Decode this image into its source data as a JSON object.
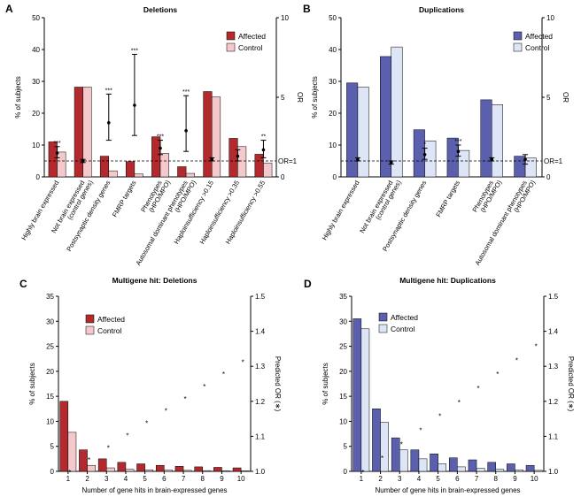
{
  "chart_data": [
    {
      "panel": "A",
      "type": "bar",
      "title": "Deletions",
      "ylabel": "% of subjects",
      "y2label": "OR",
      "ylim": [
        0,
        50
      ],
      "yticks": [
        0,
        10,
        20,
        30,
        40,
        50
      ],
      "y2lim": [
        0,
        10
      ],
      "y2ticks": [
        0,
        5,
        10
      ],
      "reference_line_label": "OR=1",
      "reference_or": 1,
      "categories": [
        "Highly brain expressed",
        "Not brain expressed (control genes)",
        "Postsynaptic density genes",
        "FMRP targets",
        "Phenotypes (HPO/MPO)",
        "Autosomal dominant phenotypes (HPO/MPO)",
        "Haploinsufficiency >0.15",
        "Haploinsufficiency >0.35",
        "Haploinsufficiency >0.55"
      ],
      "series": [
        {
          "name": "Affected",
          "color": "#b22a2e",
          "values": [
            11,
            28.2,
            6.5,
            4.8,
            12.6,
            3.2,
            26.8,
            12.1,
            7.1
          ]
        },
        {
          "name": "Control",
          "color": "#f4c9cc",
          "values": [
            7.8,
            28.2,
            1.9,
            0.9,
            7.4,
            1.1,
            25.1,
            9.5,
            4.3
          ]
        }
      ],
      "odds_ratio": [
        {
          "value": 1.5,
          "lower": 1.2,
          "upper": 1.9,
          "sig": "***"
        },
        {
          "value": 1.0,
          "lower": 0.9,
          "upper": 1.1,
          "sig": ""
        },
        {
          "value": 3.4,
          "lower": 2.3,
          "upper": 5.2,
          "sig": "***"
        },
        {
          "value": 4.5,
          "lower": 2.6,
          "upper": 7.7,
          "sig": "***"
        },
        {
          "value": 1.8,
          "lower": 1.4,
          "upper": 2.3,
          "sig": "***"
        },
        {
          "value": 2.9,
          "lower": 1.6,
          "upper": 5.1,
          "sig": "***"
        },
        {
          "value": 1.1,
          "lower": 1.0,
          "upper": 1.2,
          "sig": ""
        },
        {
          "value": 1.3,
          "lower": 1.0,
          "upper": 1.7,
          "sig": ""
        },
        {
          "value": 1.7,
          "lower": 1.2,
          "upper": 2.3,
          "sig": "**"
        }
      ],
      "legend": [
        "Affected",
        "Control"
      ]
    },
    {
      "panel": "B",
      "type": "bar",
      "title": "Duplications",
      "ylabel": "% of subjects",
      "y2label": "OR",
      "ylim": [
        0,
        50
      ],
      "yticks": [
        0,
        10,
        20,
        30,
        40,
        50
      ],
      "y2lim": [
        0,
        10
      ],
      "y2ticks": [
        0,
        5,
        10
      ],
      "reference_line_label": "OR=1",
      "reference_or": 1,
      "categories": [
        "Highly brain expressed",
        "Not brain expressed (control genes)",
        "Postsynaptic density genes",
        "FMRP targets",
        "Phenotypes (HPO/MPO)",
        "Autosomal dominant phenotypes (HPO/MPO)"
      ],
      "series": [
        {
          "name": "Affected",
          "color": "#5a5fae",
          "values": [
            29.5,
            37.8,
            14.8,
            12.2,
            24.2,
            6.5
          ]
        },
        {
          "name": "Control",
          "color": "#dde5f6",
          "values": [
            28.2,
            40.8,
            11.3,
            8.3,
            22.7,
            5.9
          ]
        }
      ],
      "odds_ratio": [
        {
          "value": 1.1,
          "lower": 1.0,
          "upper": 1.2,
          "sig": ""
        },
        {
          "value": 0.9,
          "lower": 0.8,
          "upper": 1.0,
          "sig": ""
        },
        {
          "value": 1.4,
          "lower": 1.1,
          "upper": 1.8,
          "sig": "*"
        },
        {
          "value": 1.6,
          "lower": 1.3,
          "upper": 2.0,
          "sig": "***"
        },
        {
          "value": 1.1,
          "lower": 1.0,
          "upper": 1.2,
          "sig": ""
        },
        {
          "value": 1.1,
          "lower": 0.8,
          "upper": 1.4,
          "sig": ""
        }
      ],
      "legend": [
        "Affected",
        "Control"
      ]
    },
    {
      "panel": "C",
      "type": "bar",
      "title": "Multigene hit: Deletions",
      "xlabel": "Number of gene hits in brain-expressed genes",
      "ylabel": "% of subjects",
      "y2label": "Predicted OR (∗)",
      "categories": [
        "1",
        "2",
        "3",
        "4",
        "5",
        "6",
        "7",
        "8",
        "9",
        "10"
      ],
      "ylim": [
        0,
        35
      ],
      "yticks": [
        0,
        5,
        10,
        15,
        20,
        25,
        30,
        35
      ],
      "y2lim": [
        1.0,
        1.5
      ],
      "y2ticks": [
        "1.0",
        "1.1",
        "1.2",
        "1.3",
        "1.4",
        "1.5"
      ],
      "series": [
        {
          "name": "Affected",
          "color": "#b22a2e",
          "values": [
            14.0,
            4.3,
            2.5,
            1.8,
            1.5,
            1.2,
            1.0,
            0.9,
            0.8,
            0.7
          ]
        },
        {
          "name": "Control",
          "color": "#f4c9cc",
          "values": [
            7.8,
            1.2,
            0.7,
            0.4,
            0.3,
            0.25,
            0.2,
            0.15,
            0.1,
            0.1
          ]
        }
      ],
      "predicted_or": [
        1.0,
        1.035,
        1.07,
        1.105,
        1.14,
        1.175,
        1.21,
        1.245,
        1.28,
        1.315
      ],
      "legend": [
        "Affected",
        "Control"
      ]
    },
    {
      "panel": "D",
      "type": "bar",
      "title": "Multigene hit: Duplications",
      "xlabel": "Number of gene hits in brain-expressed genes",
      "ylabel": "% of subjects",
      "y2label": "Predicted OR (∗)",
      "categories": [
        "1",
        "2",
        "3",
        "4",
        "5",
        "6",
        "7",
        "8",
        "9",
        "10"
      ],
      "ylim": [
        0,
        35
      ],
      "yticks": [
        0,
        5,
        10,
        15,
        20,
        25,
        30,
        35
      ],
      "y2lim": [
        1.0,
        1.5
      ],
      "y2ticks": [
        "1.0",
        "1.1",
        "1.2",
        "1.3",
        "1.4",
        "1.5"
      ],
      "series": [
        {
          "name": "Affected",
          "color": "#5a5fae",
          "values": [
            30.5,
            12.5,
            6.7,
            4.3,
            3.5,
            2.7,
            2.3,
            1.8,
            1.5,
            1.2
          ]
        },
        {
          "name": "Control",
          "color": "#dde5f6",
          "values": [
            28.5,
            9.8,
            4.3,
            2.5,
            1.5,
            0.9,
            0.6,
            0.4,
            0.3,
            0.2
          ]
        }
      ],
      "predicted_or": [
        1.0,
        1.04,
        1.08,
        1.12,
        1.16,
        1.2,
        1.24,
        1.28,
        1.32,
        1.36
      ],
      "legend": [
        "Affected",
        "Control"
      ]
    }
  ]
}
